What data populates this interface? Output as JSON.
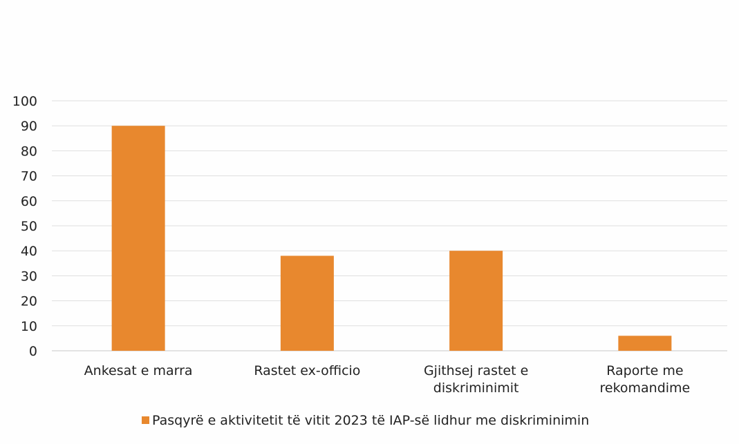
{
  "chart_data": {
    "type": "bar",
    "categories": [
      [
        "Ankesat e marra"
      ],
      [
        "Rastet ex-officio"
      ],
      [
        "Gjithsej rastet e",
        "diskriminimit"
      ],
      [
        "Raporte me",
        "rekomandime"
      ]
    ],
    "series": [
      {
        "name": "Pasqyrë e aktivitetit të vitit 2023 të IAP-së lidhur me diskriminimin",
        "values": [
          90,
          38,
          40,
          6
        ],
        "color": "#E8882E"
      }
    ],
    "title": "",
    "xlabel": "",
    "ylabel": "",
    "ylim": [
      0,
      100
    ],
    "yticks": [
      0,
      10,
      20,
      30,
      40,
      50,
      60,
      70,
      80,
      90,
      100
    ],
    "grid": true,
    "legend": "bottom"
  }
}
